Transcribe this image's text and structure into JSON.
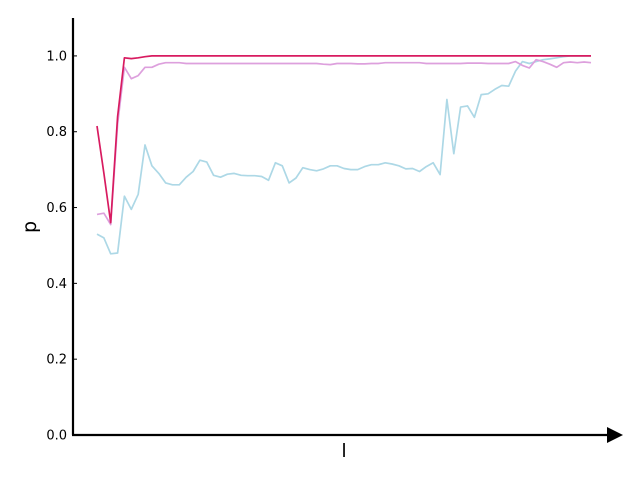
{
  "chart_data": {
    "type": "line",
    "title": "",
    "xlabel": "l",
    "ylabel": "p",
    "xlim": [
      0,
      73
    ],
    "ylim": [
      0,
      1.1
    ],
    "yticks": [
      "0.0",
      "0.2",
      "0.4",
      "0.6",
      "0.8",
      "1.0"
    ],
    "xticks": [],
    "grid": false,
    "legend": "none",
    "series": [
      {
        "color": "#add8e6",
        "x": [
          1,
          2,
          3,
          4,
          5,
          6,
          7,
          8,
          9,
          10,
          11,
          12,
          13,
          14,
          15,
          16,
          17,
          18,
          19,
          20,
          21,
          22,
          23,
          24,
          25,
          26,
          27,
          28,
          29,
          30,
          31,
          32,
          33,
          34,
          35,
          36,
          37,
          38,
          39,
          40,
          41,
          42,
          43,
          44,
          45,
          46,
          47,
          48,
          49,
          50,
          51,
          52,
          53,
          54,
          55,
          56,
          57,
          58,
          59,
          60,
          61,
          62,
          63,
          64,
          65,
          66,
          67,
          68,
          69,
          70,
          71,
          72,
          73
        ],
        "values": [
          0.53,
          0.52,
          0.478,
          0.48,
          0.63,
          0.595,
          0.635,
          0.765,
          0.71,
          0.69,
          0.665,
          0.66,
          0.66,
          0.68,
          0.695,
          0.725,
          0.72,
          0.685,
          0.68,
          0.688,
          0.69,
          0.685,
          0.684,
          0.684,
          0.682,
          0.672,
          0.718,
          0.71,
          0.665,
          0.678,
          0.705,
          0.7,
          0.697,
          0.702,
          0.71,
          0.71,
          0.703,
          0.7,
          0.7,
          0.708,
          0.713,
          0.713,
          0.718,
          0.715,
          0.71,
          0.702,
          0.703,
          0.695,
          0.708,
          0.718,
          0.687,
          0.885,
          0.742,
          0.865,
          0.868,
          0.838,
          0.898,
          0.9,
          0.912,
          0.922,
          0.92,
          0.96,
          0.985,
          0.98,
          0.985,
          0.99,
          0.992,
          0.995,
          0.998,
          1.0,
          1.0,
          1.0,
          1.0
        ]
      },
      {
        "color": "#dda0dd",
        "x": [
          1,
          2,
          3,
          4,
          5,
          6,
          7,
          8,
          9,
          10,
          11,
          12,
          13,
          14,
          15,
          16,
          17,
          18,
          19,
          20,
          21,
          22,
          23,
          24,
          25,
          26,
          27,
          28,
          29,
          30,
          31,
          32,
          33,
          34,
          35,
          36,
          37,
          38,
          39,
          40,
          41,
          42,
          43,
          44,
          45,
          46,
          47,
          48,
          49,
          50,
          51,
          52,
          53,
          54,
          55,
          56,
          57,
          58,
          59,
          60,
          61,
          62,
          63,
          64,
          65,
          66,
          67,
          68,
          69,
          70,
          71,
          72,
          73
        ],
        "values": [
          0.582,
          0.585,
          0.555,
          0.82,
          0.97,
          0.94,
          0.948,
          0.97,
          0.97,
          0.978,
          0.982,
          0.982,
          0.982,
          0.98,
          0.98,
          0.98,
          0.98,
          0.98,
          0.98,
          0.98,
          0.98,
          0.98,
          0.98,
          0.98,
          0.98,
          0.98,
          0.98,
          0.98,
          0.98,
          0.98,
          0.98,
          0.98,
          0.98,
          0.978,
          0.977,
          0.98,
          0.98,
          0.98,
          0.979,
          0.979,
          0.98,
          0.98,
          0.982,
          0.982,
          0.982,
          0.982,
          0.982,
          0.982,
          0.98,
          0.98,
          0.98,
          0.98,
          0.98,
          0.98,
          0.981,
          0.981,
          0.981,
          0.98,
          0.98,
          0.98,
          0.98,
          0.985,
          0.975,
          0.968,
          0.99,
          0.985,
          0.978,
          0.97,
          0.982,
          0.984,
          0.982,
          0.984,
          0.982
        ]
      },
      {
        "color": "#d81b60",
        "x": [
          1,
          2,
          3,
          4,
          5,
          6,
          7,
          8,
          9,
          10,
          11,
          12,
          13,
          14,
          15,
          16,
          17,
          18,
          19,
          20,
          21,
          22,
          23,
          24,
          25,
          26,
          27,
          28,
          29,
          30,
          31,
          32,
          33,
          34,
          35,
          36,
          37,
          38,
          39,
          40,
          41,
          42,
          43,
          44,
          45,
          46,
          47,
          48,
          49,
          50,
          51,
          52,
          53,
          54,
          55,
          56,
          57,
          58,
          59,
          60,
          61,
          62,
          63,
          64,
          65,
          66,
          67,
          68,
          69,
          70,
          71,
          72,
          73
        ],
        "values": [
          0.815,
          0.69,
          0.56,
          0.84,
          0.995,
          0.993,
          0.995,
          0.998,
          1.0,
          1.0,
          1.0,
          1.0,
          1.0,
          1.0,
          1.0,
          1.0,
          1.0,
          1.0,
          1.0,
          1.0,
          1.0,
          1.0,
          1.0,
          1.0,
          1.0,
          1.0,
          1.0,
          1.0,
          1.0,
          1.0,
          1.0,
          1.0,
          1.0,
          1.0,
          1.0,
          1.0,
          1.0,
          1.0,
          1.0,
          1.0,
          1.0,
          1.0,
          1.0,
          1.0,
          1.0,
          1.0,
          1.0,
          1.0,
          1.0,
          1.0,
          1.0,
          1.0,
          1.0,
          1.0,
          1.0,
          1.0,
          1.0,
          1.0,
          1.0,
          1.0,
          1.0,
          1.0,
          1.0,
          1.0,
          1.0,
          1.0,
          1.0,
          1.0,
          1.0,
          1.0,
          1.0,
          1.0,
          1.0
        ]
      }
    ]
  }
}
